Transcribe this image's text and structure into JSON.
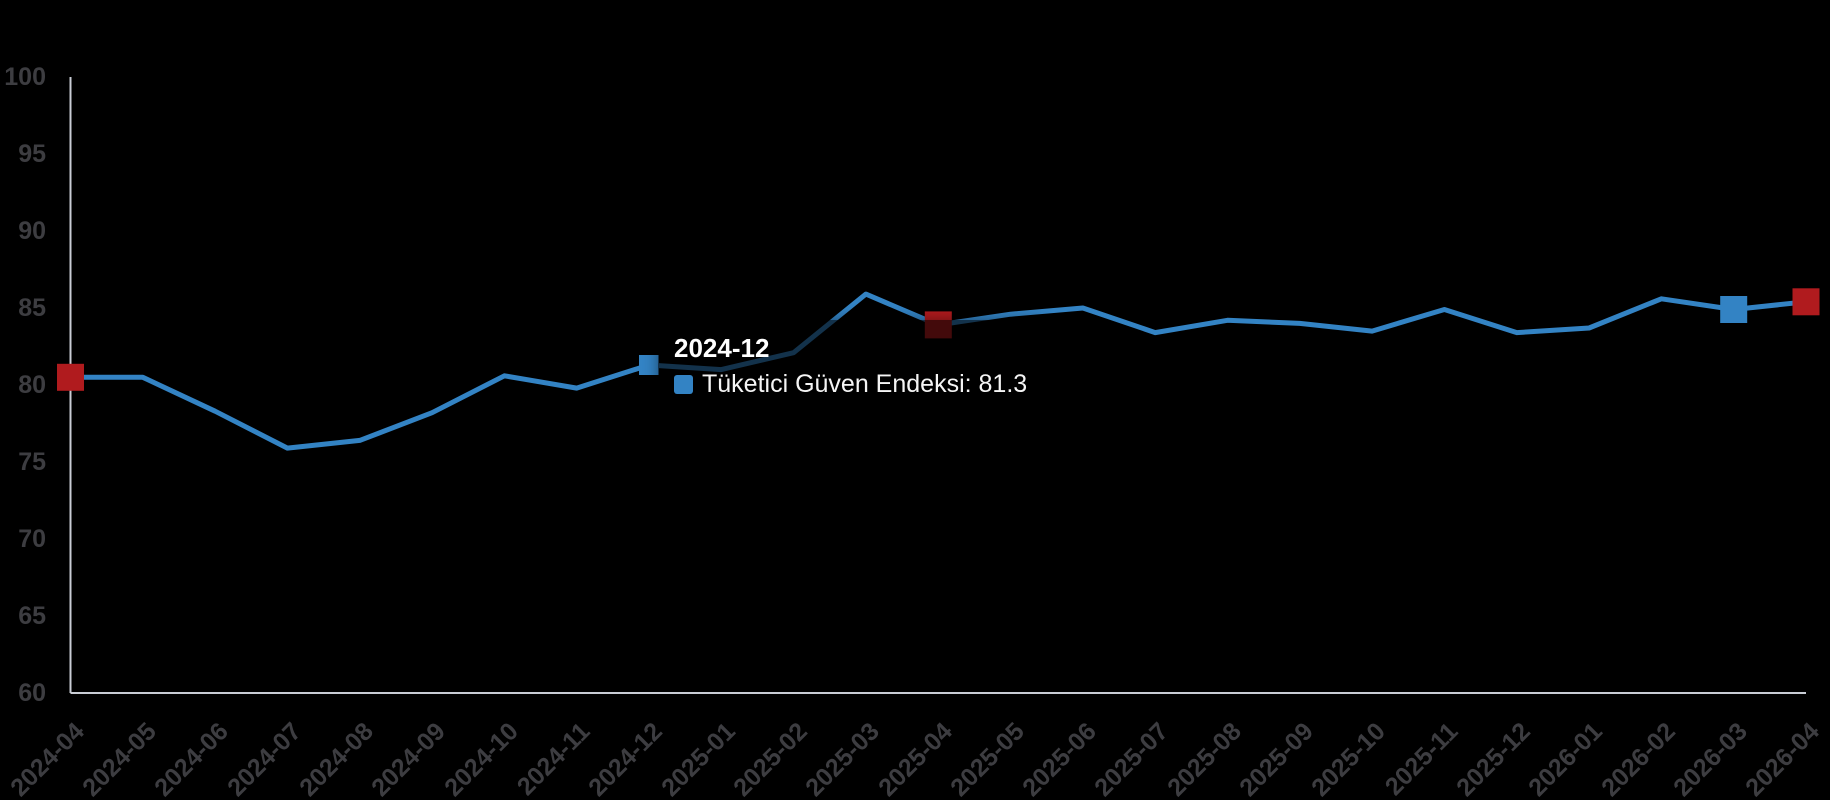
{
  "background_color": "#000000",
  "axis": {
    "line_color": "#c9cdd5",
    "label_color": "#3d3d41",
    "y_tick_labels": [
      "100",
      "95",
      "90",
      "85",
      "80",
      "75",
      "70",
      "65",
      "60"
    ]
  },
  "tooltip": {
    "title": "2024-12",
    "series_label": "Tüketici Güven Endeksi",
    "value": "81.3",
    "full_text": "Tüketici Güven Endeksi: 81.3",
    "swatch_color": "#3383c4"
  },
  "chart_data": {
    "type": "line",
    "title": "",
    "xlabel": "",
    "ylabel": "",
    "series_name": "Tüketici Güven Endeksi",
    "line_color": "#3383c4",
    "grid": false,
    "legend_position": "none",
    "ylim": [
      60,
      100
    ],
    "y_ticks": [
      100,
      95,
      90,
      85,
      80,
      75,
      70,
      65,
      60
    ],
    "categories": [
      "2024-04",
      "2024-05",
      "2024-06",
      "2024-07",
      "2024-08",
      "2024-09",
      "2024-10",
      "2024-11",
      "2024-12",
      "2025-01",
      "2025-02",
      "2025-03",
      "2025-04",
      "2025-05",
      "2025-06",
      "2025-07",
      "2025-08",
      "2025-09",
      "2025-10",
      "2025-11",
      "2025-12",
      "2026-01",
      "2026-02",
      "2026-03",
      "2026-04"
    ],
    "values": [
      80.5,
      80.5,
      78.3,
      75.9,
      76.4,
      78.2,
      80.6,
      79.8,
      81.3,
      81.0,
      82.1,
      85.9,
      83.9,
      84.6,
      85.0,
      83.4,
      84.2,
      84.0,
      83.5,
      84.9,
      83.4,
      83.7,
      85.6,
      84.9,
      85.4
    ],
    "hovered_category": "2024-12",
    "hovered_value": 81.3,
    "markers": [
      {
        "index": 0,
        "category": "2024-04",
        "shape": "square",
        "color": "#b01b1e",
        "size": 27,
        "role": "endpoint-marker"
      },
      {
        "index": 8,
        "category": "2024-12",
        "shape": "square",
        "color": "#3383c4",
        "size": 20,
        "role": "hovered-point"
      },
      {
        "index": 12,
        "category": "2025-04",
        "shape": "square",
        "color": "#b01b1e",
        "size": 27,
        "role": "highlight-marker"
      },
      {
        "index": 23,
        "category": "2026-03",
        "shape": "square",
        "color": "#3383c4",
        "size": 27,
        "role": "highlight-marker"
      },
      {
        "index": 24,
        "category": "2026-04",
        "shape": "square",
        "color": "#b01b1e",
        "size": 27,
        "role": "endpoint-marker"
      }
    ]
  }
}
